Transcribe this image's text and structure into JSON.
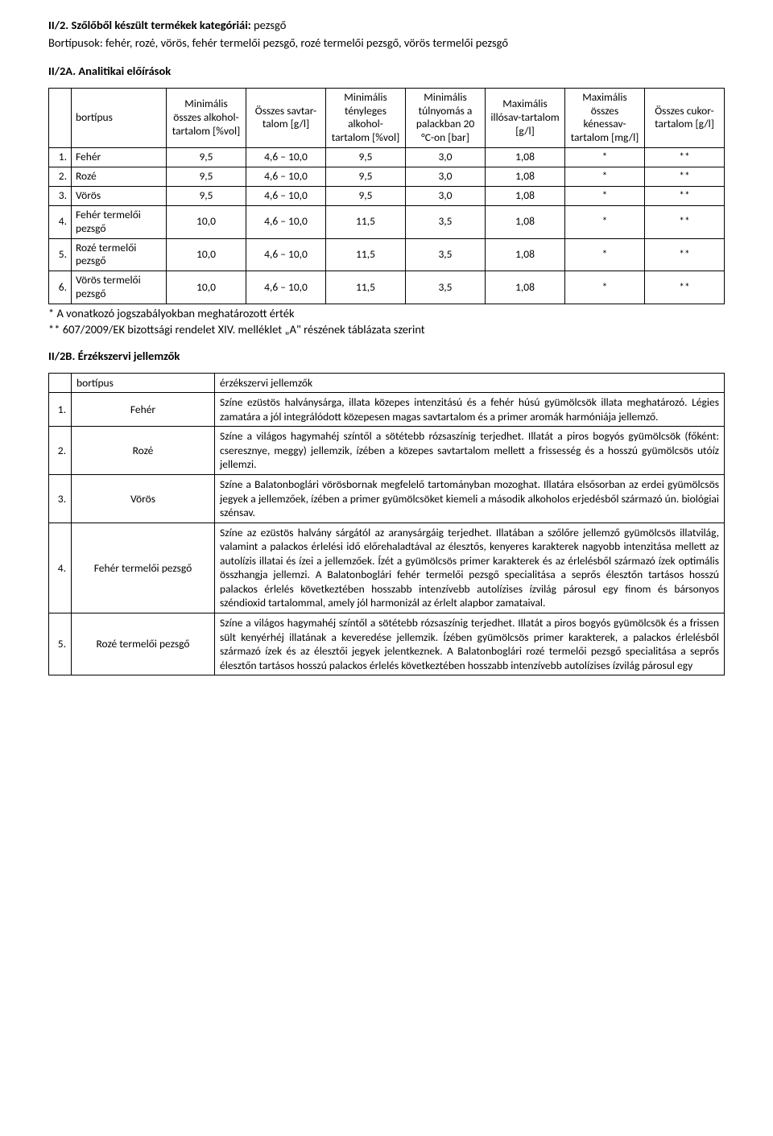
{
  "section1": {
    "title_prefix": "II/2. Szőlőből készült termékek kategóriái:",
    "title_suffix": " pezsgő",
    "line2": "Bortípusok: fehér, rozé, vörös, fehér termelői pezsgő, rozé termelői pezsgő, vörös termelői pezsgő",
    "sub_title": "II/2A. Analitikai előírások"
  },
  "table1": {
    "headers": {
      "bortipus": "bortípus",
      "h1": "Minimális összes alkohol-tartalom [%vol]",
      "h2": "Összes savtar-talom [g/l]",
      "h3": "Minimális tényleges alkohol-tartalom [%vol]",
      "h4": "Minimális túlnyomás a palackban 20 °C-on [bar]",
      "h5": "Maximális illósav-tartalom [g/l]",
      "h6": "Maximális összes kénessav-tartalom [mg/l]",
      "h7": "Összes cukor-tartalom [g/l]"
    },
    "rows": [
      {
        "n": "1.",
        "name": "Fehér",
        "c1": "9,5",
        "c2": "4,6 – 10,0",
        "c3": "9,5",
        "c4": "3,0",
        "c5": "1,08",
        "c6": "*",
        "c7": "**"
      },
      {
        "n": "2.",
        "name": "Rozé",
        "c1": "9,5",
        "c2": "4,6 – 10,0",
        "c3": "9,5",
        "c4": "3,0",
        "c5": "1,08",
        "c6": "*",
        "c7": "**"
      },
      {
        "n": "3.",
        "name": "Vörös",
        "c1": "9,5",
        "c2": "4,6 – 10,0",
        "c3": "9,5",
        "c4": "3,0",
        "c5": "1,08",
        "c6": "*",
        "c7": "**"
      },
      {
        "n": "4.",
        "name": "Fehér termelői pezsgő",
        "c1": "10,0",
        "c2": "4,6 – 10,0",
        "c3": "11,5",
        "c4": "3,5",
        "c5": "1,08",
        "c6": "*",
        "c7": "**"
      },
      {
        "n": "5.",
        "name": "Rozé termelői pezsgő",
        "c1": "10,0",
        "c2": "4,6 – 10,0",
        "c3": "11,5",
        "c4": "3,5",
        "c5": "1,08",
        "c6": "*",
        "c7": "**"
      },
      {
        "n": "6.",
        "name": "Vörös termelői pezsgő",
        "c1": "10,0",
        "c2": "4,6 – 10,0",
        "c3": "11,5",
        "c4": "3,5",
        "c5": "1,08",
        "c6": "*",
        "c7": "**"
      }
    ]
  },
  "notes": {
    "n1": "* A vonatkozó jogszabályokban meghatározott érték",
    "n2": "** 607/2009/EK bizottsági rendelet XIV. melléklet „A\" részének táblázata szerint"
  },
  "section2b": {
    "title": "II/2B. Érzékszervi jellemzők"
  },
  "table2": {
    "headers": {
      "bortipus": "bortípus",
      "desc": "érzékszervi jellemzők"
    },
    "rows": [
      {
        "n": "1.",
        "name": "Fehér",
        "desc": "Színe ezüstös halványsárga, illata közepes intenzitású és a fehér húsú gyümölcsök illata meghatározó. Légies zamatára a jól integrálódott közepesen magas savtartalom és a primer aromák harmóniája jellemző."
      },
      {
        "n": "2.",
        "name": "Rozé",
        "desc": "Színe a világos hagymahéj színtől a sötétebb rózsaszínig terjedhet. Illatát a piros bogyós gyümölcsök (főként: cseresznye, meggy) jellemzik, ízében a közepes savtartalom mellett a frissesség és a hosszú gyümölcsös utóíz jellemzi."
      },
      {
        "n": "3.",
        "name": "Vörös",
        "desc": "Színe a Balatonboglári vörösbornak megfelelő tartományban mozoghat. Illatára elsősorban az erdei gyümölcsös jegyek a jellemzőek, ízében a primer gyümölcsöket kiemeli a második alkoholos erjedésből származó ún. biológiai szénsav."
      },
      {
        "n": "4.",
        "name": "Fehér termelői pezsgő",
        "desc": "Színe az ezüstös halvány sárgától az aranysárgáig terjedhet. Illatában a szőlőre jellemző gyümölcsös illatvilág, valamint a palackos érlelési idő előrehaladtával az élesztős, kenyeres karakterek nagyobb intenzitása mellett az autolízis illatai és ízei a jellemzőek. Ízét a gyümölcsös primer karakterek és az érlelésből származó ízek optimális összhangja jellemzi. A Balatonboglári fehér termelői pezsgő specialitása a seprős élesztőn tartásos hosszú palackos érlelés következtében hosszabb intenzívebb autolízises ízvilág párosul egy finom és bársonyos széndioxid tartalommal, amely jól harmonizál az érlelt alapbor zamataival."
      },
      {
        "n": "5.",
        "name": "Rozé termelői pezsgő",
        "desc": "Színe a világos hagymahéj színtől a sötétebb rózsaszínig terjedhet. Illatát a piros bogyós gyümölcsök és a frissen sült kenyérhéj illatának a keveredése jellemzik. Ízében gyümölcsös primer karakterek, a palackos érlelésből származó ízek és az élesztői jegyek jelentkeznek. A Balatonboglári rozé termelői pezsgő specialitása a seprős élesztőn tartásos hosszú palackos érlelés következtében hosszabb intenzívebb autolízises ízvilág párosul egy"
      }
    ]
  }
}
